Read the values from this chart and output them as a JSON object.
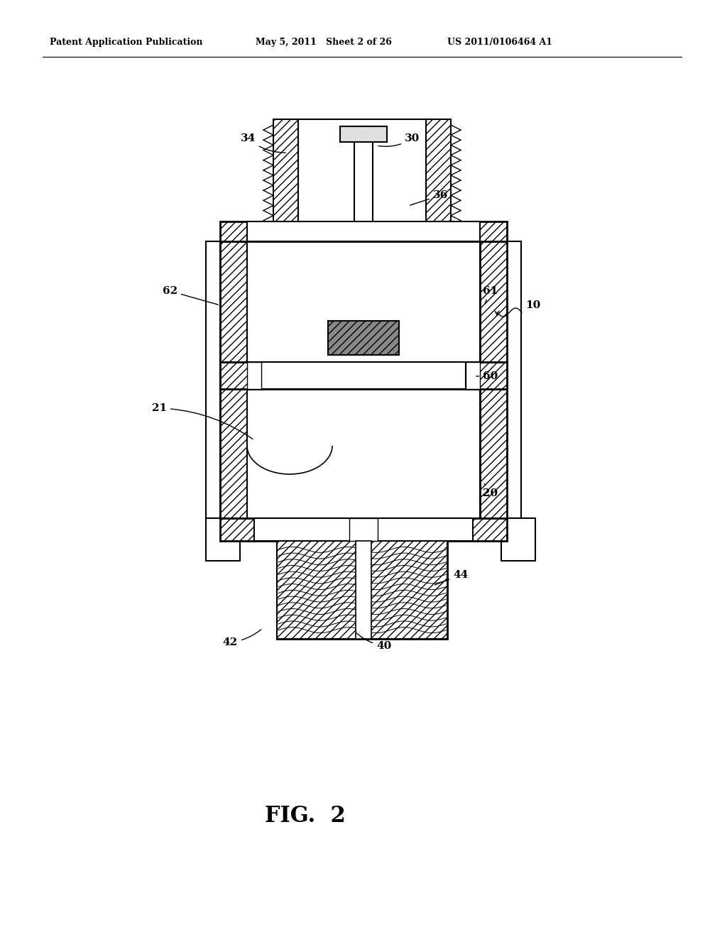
{
  "bg_color": "#ffffff",
  "line_color": "#000000",
  "header_left": "Patent Application Publication",
  "header_mid": "May 5, 2011   Sheet 2 of 26",
  "header_right": "US 2011/0106464 A1",
  "fig_label": "FIG.  2"
}
